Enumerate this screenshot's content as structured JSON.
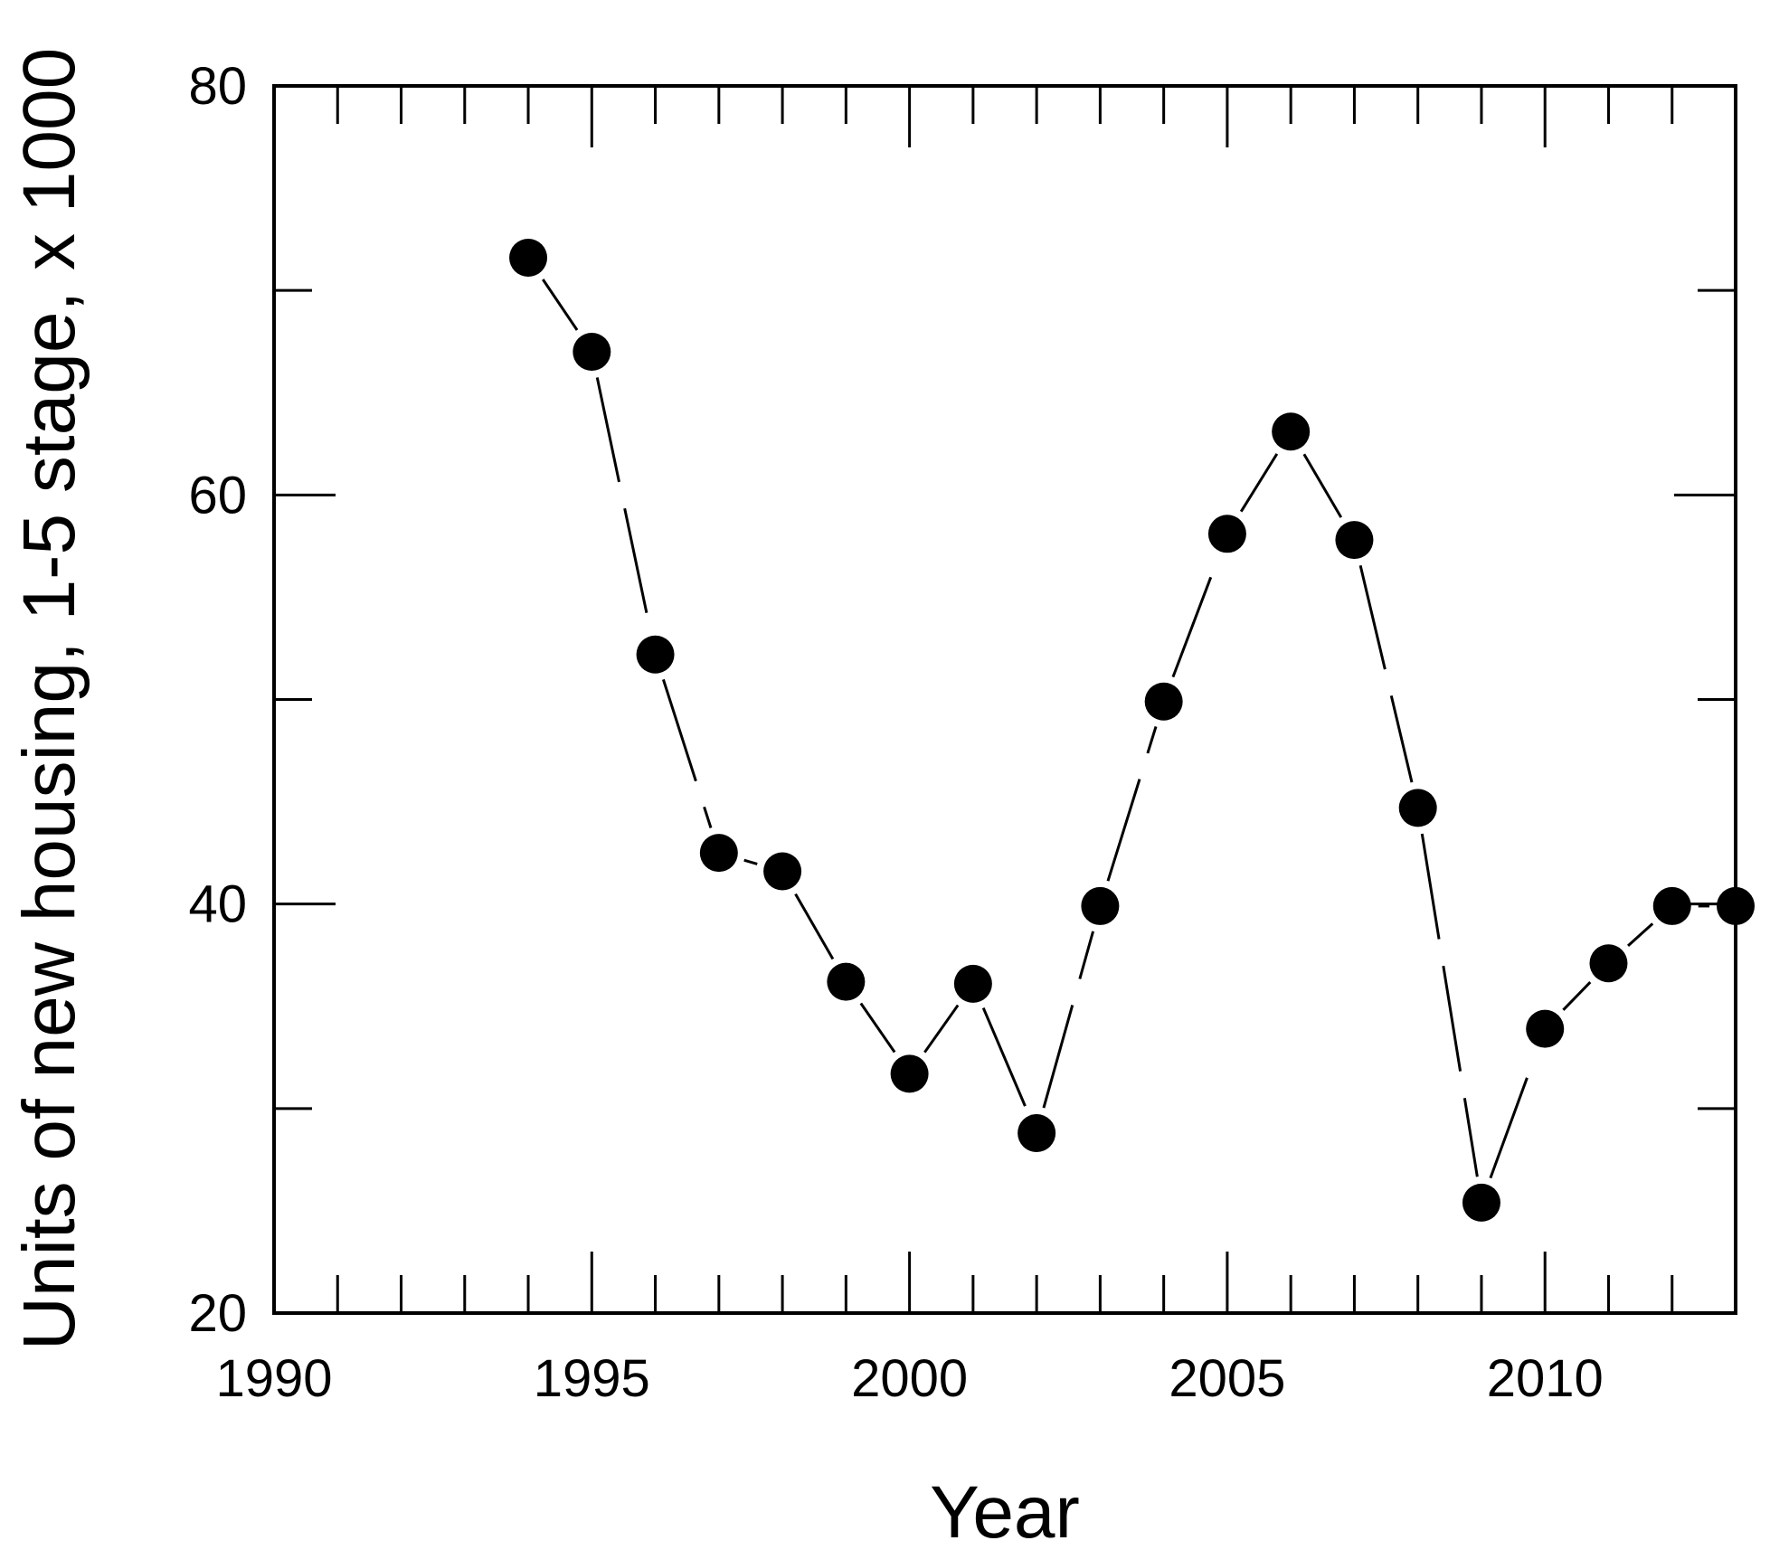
{
  "chart_data": {
    "type": "line",
    "xlabel": "Year",
    "ylabel": "Units of new housing,  1-5 stage,  x 1000",
    "xlim": [
      1990,
      2013
    ],
    "ylim": [
      20,
      80
    ],
    "x_ticks": [
      1990,
      1995,
      2000,
      2005,
      2010
    ],
    "y_ticks": [
      20,
      40,
      60,
      80
    ],
    "grid": false,
    "line_style": "dashed",
    "marker": "filled-circle",
    "color": "#000000",
    "series": [
      {
        "x": [
          1994,
          1995,
          1996,
          1997,
          1998,
          1999,
          2000,
          2001,
          2002,
          2003,
          2004,
          2005,
          2006,
          2007,
          2008,
          2009,
          2010,
          2011,
          2012,
          2013
        ],
        "y": [
          71.6,
          67.0,
          52.2,
          42.5,
          41.6,
          36.2,
          31.7,
          36.1,
          28.8,
          39.9,
          49.9,
          58.1,
          63.1,
          57.8,
          44.7,
          25.4,
          33.9,
          37.1,
          39.9,
          39.9
        ]
      }
    ]
  }
}
